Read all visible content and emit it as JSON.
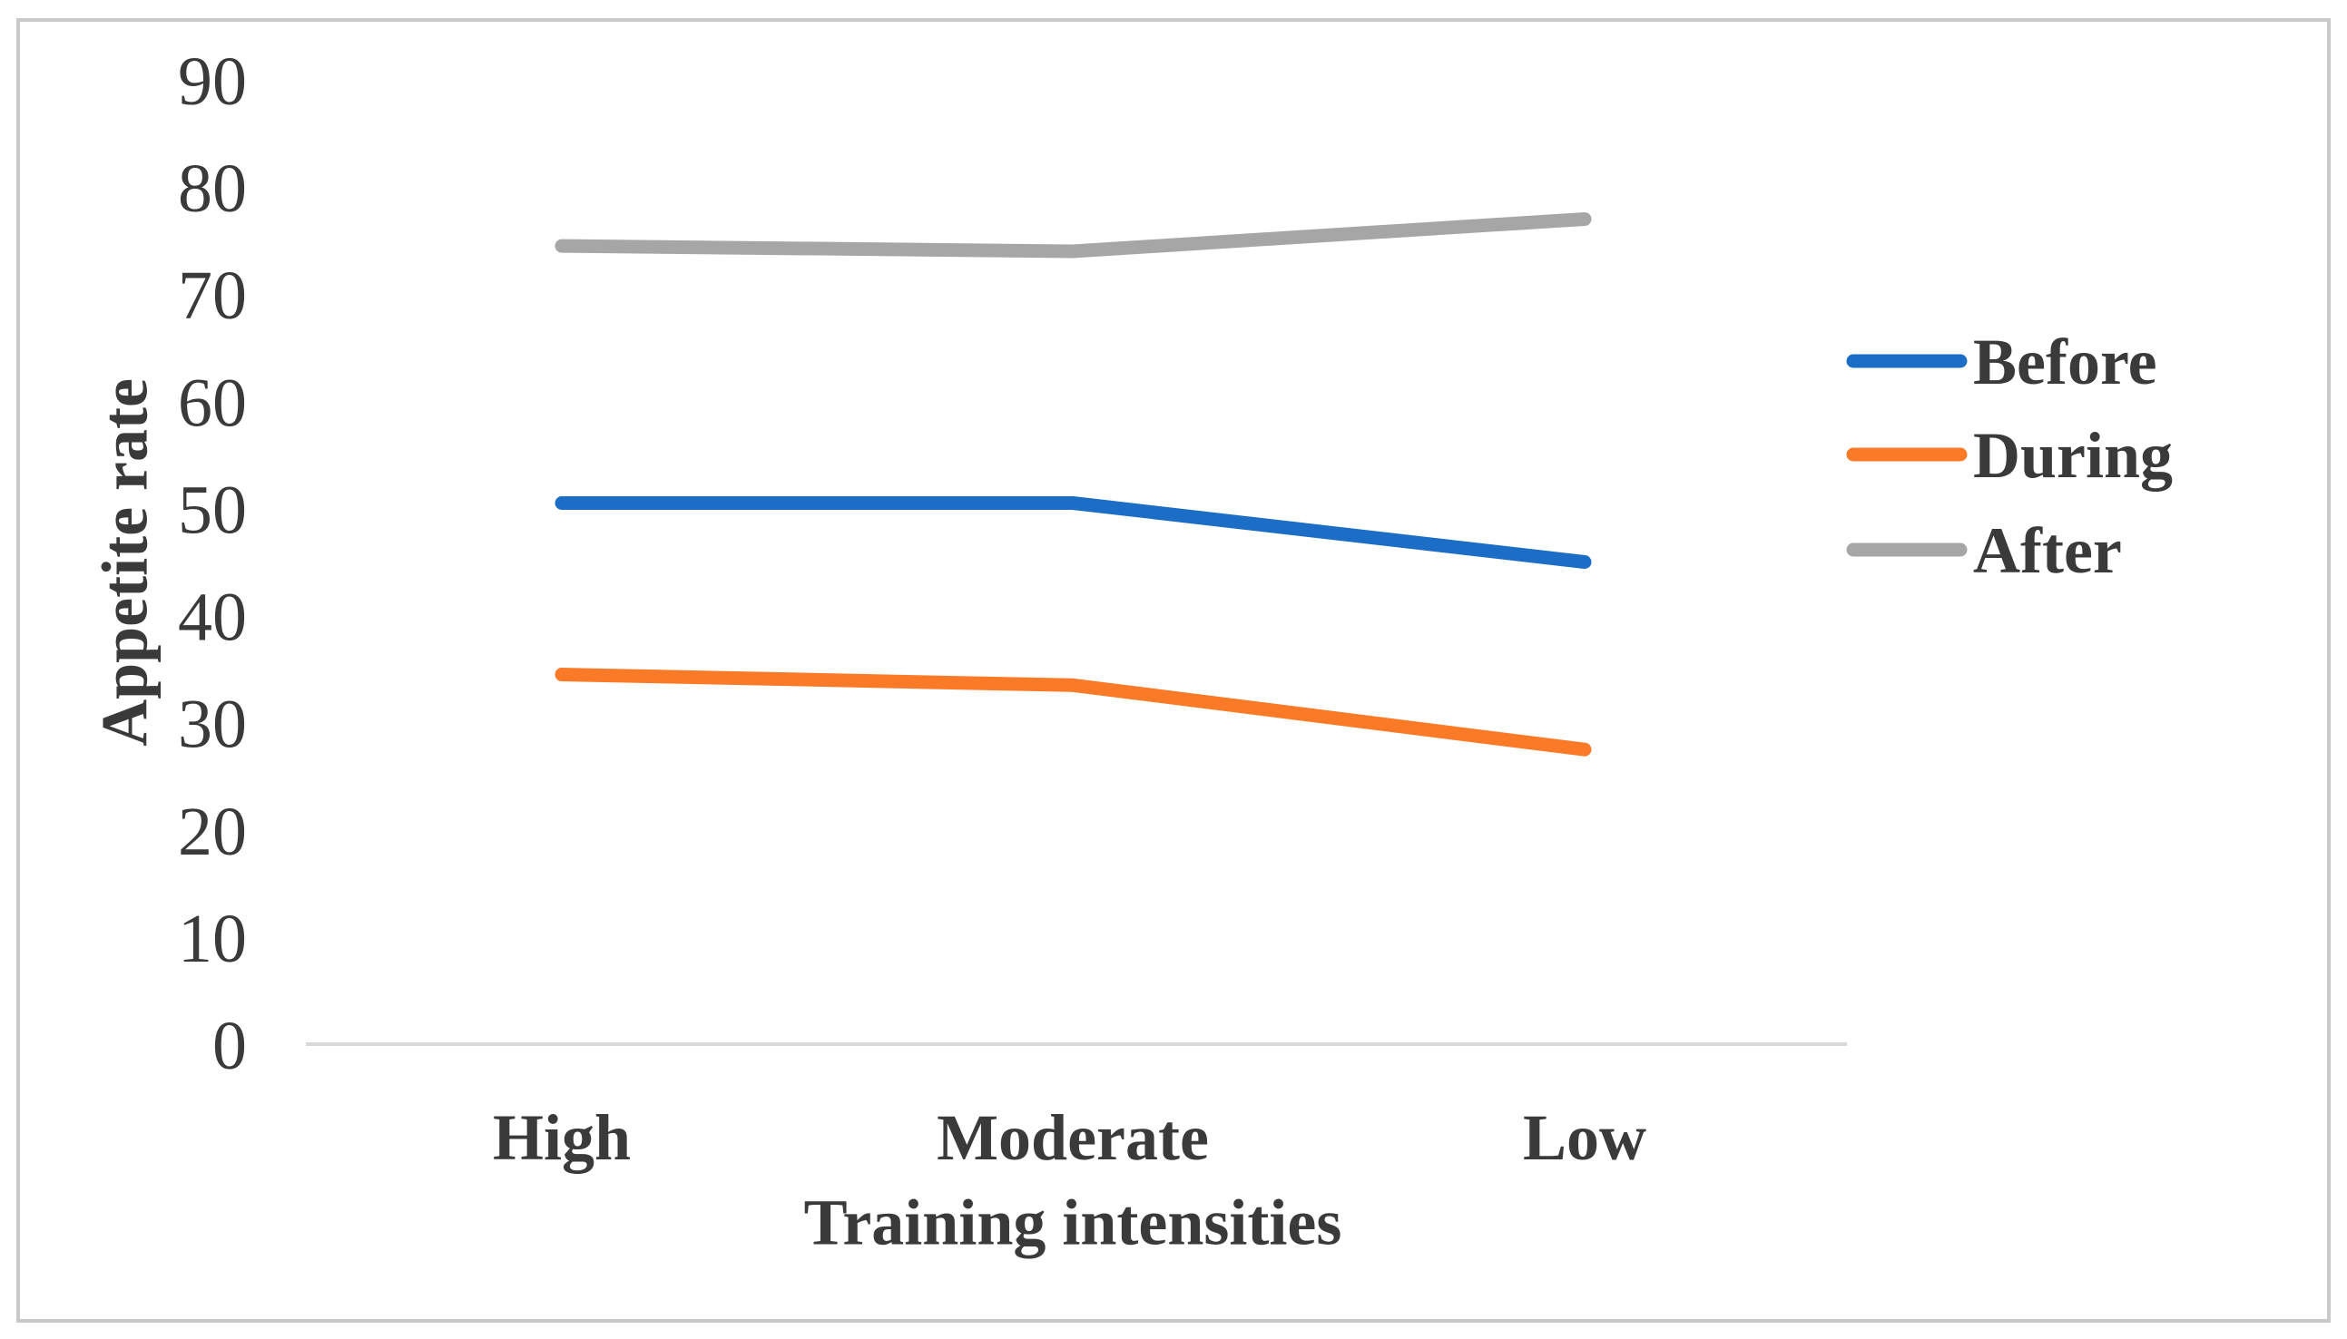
{
  "chart_data": {
    "type": "line",
    "title": "",
    "categories": [
      "High",
      "Moderate",
      "Low"
    ],
    "series": [
      {
        "name": "Before",
        "color": "#1c6dc6",
        "values": [
          50.5,
          50.5,
          45
        ]
      },
      {
        "name": "During",
        "color": "#fa7a28",
        "values": [
          34.5,
          33.5,
          27.5
        ]
      },
      {
        "name": "After",
        "color": "#a6a6a6",
        "values": [
          74.5,
          74,
          77
        ]
      }
    ],
    "xlabel": "Training intensities",
    "ylabel": "Appetite rate",
    "ylim": [
      0,
      90
    ],
    "yticks": [
      0,
      10,
      20,
      30,
      40,
      50,
      60,
      70,
      80,
      90
    ],
    "legend_position": "right",
    "grid": false
  },
  "style": {
    "frame_border_color": "#c9c9c9",
    "axis_line_color": "#d9d9d9",
    "text_color": "#3a3a3a",
    "background": "#ffffff"
  }
}
